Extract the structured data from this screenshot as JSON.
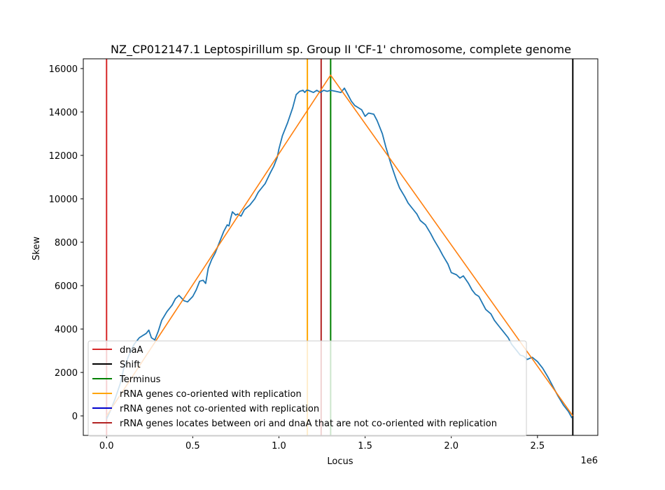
{
  "chart_data": {
    "type": "line",
    "title": "NZ_CP012147.1 Leptospirillum sp. Group II 'CF-1' chromosome, complete genome",
    "xlabel": "Locus",
    "ylabel": "Skew",
    "x_offset_label": "1e6",
    "xlim": [
      -0.135,
      2.85
    ],
    "ylim": [
      -900,
      16450
    ],
    "x_ticks": [
      0,
      0.5,
      1.0,
      1.5,
      2.0,
      2.5
    ],
    "x_tick_labels": [
      "0.0",
      "0.5",
      "1.0",
      "1.5",
      "2.0",
      "2.5"
    ],
    "y_ticks": [
      0,
      2000,
      4000,
      6000,
      8000,
      10000,
      12000,
      14000,
      16000
    ],
    "y_tick_labels": [
      "0",
      "2000",
      "4000",
      "6000",
      "8000",
      "10000",
      "12000",
      "14000",
      "16000"
    ],
    "grid": false,
    "legend_position": "lower-left",
    "series": [
      {
        "kind": "skew",
        "color": "#1f77b4",
        "x": [
          0.0,
          0.02,
          0.05,
          0.08,
          0.1,
          0.13,
          0.16,
          0.19,
          0.21,
          0.23,
          0.245,
          0.26,
          0.28,
          0.3,
          0.32,
          0.35,
          0.38,
          0.4,
          0.42,
          0.45,
          0.47,
          0.5,
          0.52,
          0.54,
          0.56,
          0.575,
          0.59,
          0.61,
          0.63,
          0.65,
          0.68,
          0.7,
          0.71,
          0.72,
          0.73,
          0.75,
          0.76,
          0.78,
          0.8,
          0.83,
          0.86,
          0.88,
          0.9,
          0.92,
          0.95,
          0.97,
          0.99,
          1.0,
          1.02,
          1.05,
          1.08,
          1.1,
          1.12,
          1.14,
          1.15,
          1.16,
          1.17,
          1.2,
          1.22,
          1.24,
          1.26,
          1.28,
          1.3,
          1.33,
          1.36,
          1.38,
          1.4,
          1.42,
          1.44,
          1.46,
          1.48,
          1.5,
          1.52,
          1.55,
          1.57,
          1.6,
          1.62,
          1.65,
          1.68,
          1.7,
          1.73,
          1.75,
          1.78,
          1.8,
          1.82,
          1.85,
          1.88,
          1.9,
          1.93,
          1.95,
          1.98,
          2.0,
          2.03,
          2.05,
          2.07,
          2.1,
          2.12,
          2.14,
          2.16,
          2.18,
          2.2,
          2.23,
          2.25,
          2.28,
          2.3,
          2.33,
          2.35,
          2.38,
          2.4,
          2.42,
          2.44,
          2.47,
          2.5,
          2.53,
          2.56,
          2.58,
          2.6,
          2.62,
          2.65,
          2.68,
          2.7
        ],
        "y": [
          -150,
          200,
          800,
          1500,
          2200,
          2800,
          3300,
          3600,
          3700,
          3800,
          3950,
          3600,
          3500,
          3900,
          4400,
          4800,
          5100,
          5400,
          5550,
          5300,
          5250,
          5500,
          5800,
          6200,
          6250,
          6100,
          6800,
          7200,
          7500,
          7900,
          8500,
          8800,
          8750,
          9100,
          9400,
          9250,
          9300,
          9200,
          9500,
          9700,
          10000,
          10300,
          10500,
          10700,
          11200,
          11500,
          11900,
          12300,
          12900,
          13500,
          14200,
          14800,
          14950,
          15000,
          14900,
          15000,
          15000,
          14900,
          15000,
          14900,
          15000,
          14950,
          15000,
          14950,
          14900,
          15100,
          14800,
          14500,
          14300,
          14200,
          14100,
          13800,
          13950,
          13900,
          13600,
          13000,
          12400,
          11600,
          10900,
          10500,
          10100,
          9800,
          9500,
          9300,
          9000,
          8800,
          8400,
          8100,
          7700,
          7400,
          7000,
          6600,
          6500,
          6350,
          6450,
          6100,
          5800,
          5600,
          5500,
          5200,
          4900,
          4700,
          4400,
          4100,
          3900,
          3600,
          3300,
          3000,
          2800,
          2750,
          2600,
          2700,
          2500,
          2200,
          1800,
          1500,
          1200,
          900,
          500,
          200,
          -100
        ]
      },
      {
        "kind": "fit",
        "color": "#ff7f0e",
        "x": [
          0.0,
          1.3,
          2.705
        ],
        "y": [
          0,
          15700,
          0
        ]
      }
    ],
    "vlines": [
      {
        "label": "dnaA",
        "x": 0.0,
        "color": "#d62728"
      },
      {
        "label": "Shift",
        "x": 2.705,
        "color": "#000000"
      },
      {
        "label": "Terminus",
        "x": 1.3,
        "color": "#008000"
      },
      {
        "label": "rRNA genes co-oriented with replication",
        "x": 1.165,
        "color": "#ffa500"
      },
      {
        "label": "rRNA genes locates between ori and dnaA that are not co-oriented with replication",
        "x": 1.245,
        "color": "#b22222"
      }
    ],
    "legend": [
      {
        "label": "dnaA",
        "color": "#d62728"
      },
      {
        "label": "Shift",
        "color": "#000000"
      },
      {
        "label": "Terminus",
        "color": "#008000"
      },
      {
        "label": "rRNA genes co-oriented with replication",
        "color": "#ffa500"
      },
      {
        "label": "rRNA genes not co-oriented with replication",
        "color": "#0000cd"
      },
      {
        "label": "rRNA genes locates between ori and dnaA that are not co-oriented with replication",
        "color": "#b22222"
      }
    ]
  }
}
